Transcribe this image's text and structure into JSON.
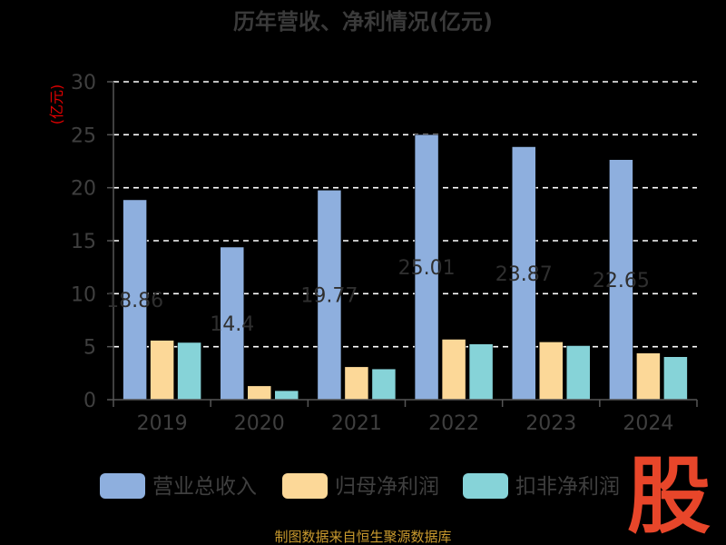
{
  "chart_data": {
    "type": "bar",
    "title": "历年营收、净利情况(亿元)",
    "ylabel": "(亿元)",
    "xlabel": "",
    "categories": [
      "2019",
      "2020",
      "2021",
      "2022",
      "2023",
      "2024"
    ],
    "ylim": [
      0,
      30
    ],
    "yticks": [
      0,
      5,
      10,
      15,
      20,
      25,
      30
    ],
    "grid": true,
    "legend_position": "bottom",
    "series": [
      {
        "name": "营业总收入",
        "color": "#8eafde",
        "values": [
          18.86,
          14.4,
          19.77,
          25.01,
          23.87,
          22.65
        ],
        "labels": [
          "18.86",
          "14.4",
          "19.77",
          "25.01",
          "23.87",
          "22.65"
        ]
      },
      {
        "name": "归母净利润",
        "color": "#fcd898",
        "values": [
          5.6,
          1.3,
          3.1,
          5.7,
          5.45,
          4.4
        ]
      },
      {
        "name": "扣非净利润",
        "color": "#86d3d8",
        "values": [
          5.4,
          0.85,
          2.9,
          5.25,
          5.1,
          4.05
        ]
      }
    ]
  },
  "source": "制图数据来自恒生聚源数据库",
  "logo": "股"
}
